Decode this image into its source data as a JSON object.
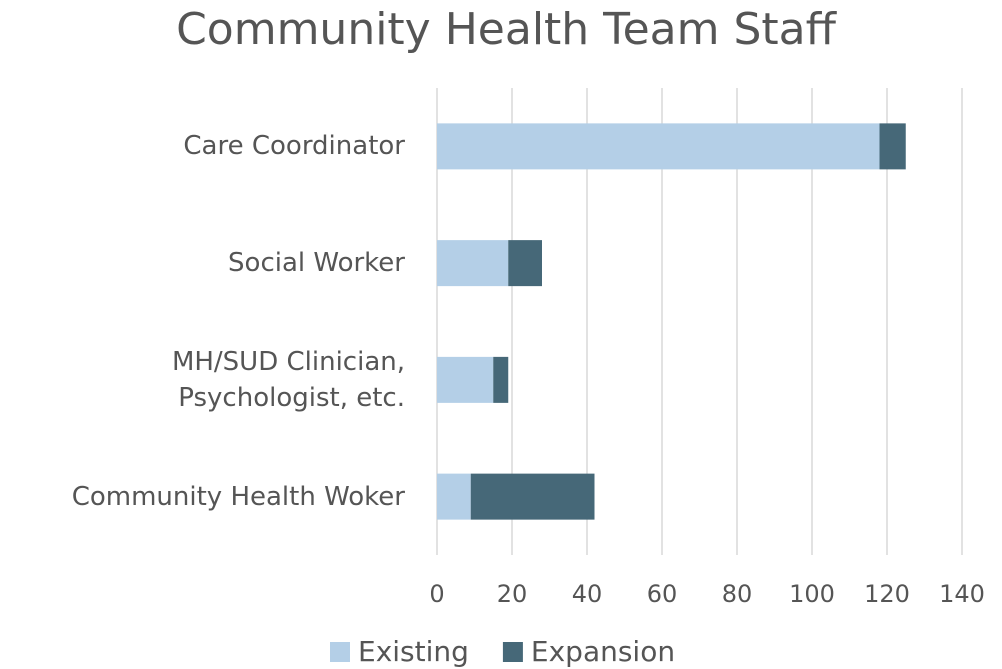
{
  "chart_data": {
    "type": "stacked_barh",
    "title": "Community Health Team Staff",
    "categories": [
      "Care Coordinator",
      "Social Worker",
      "MH/SUD Clinician,\nPsychologist, etc.",
      "Community Health Woker"
    ],
    "series": [
      {
        "name": "Existing",
        "color": "#b4cfe7",
        "values": [
          118,
          19,
          15,
          9
        ]
      },
      {
        "name": "Expansion",
        "color": "#466878",
        "values": [
          7,
          9,
          4,
          33
        ]
      }
    ],
    "xlim": [
      0,
      140
    ],
    "xticks": [
      0,
      20,
      40,
      60,
      80,
      100,
      120,
      140
    ],
    "grid": true,
    "legend": "bottom"
  }
}
